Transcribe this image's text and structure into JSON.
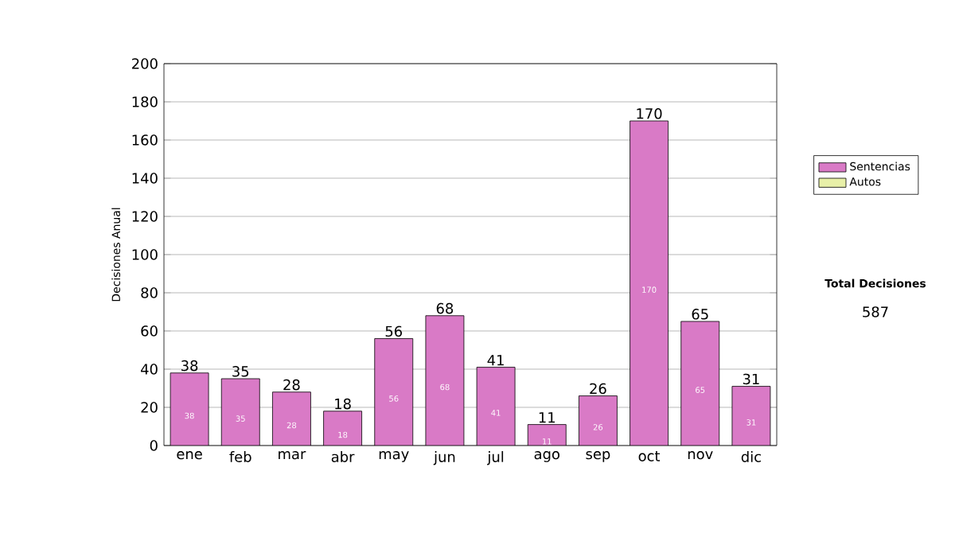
{
  "chart_data": {
    "type": "bar",
    "ylabel": "Decisiones Anual",
    "categories": [
      "ene",
      "feb",
      "mar",
      "abr",
      "may",
      "jun",
      "jul",
      "ago",
      "sep",
      "oct",
      "nov",
      "dic"
    ],
    "series": [
      {
        "name": "Sentencias",
        "color": "#d97ac6",
        "values": [
          38,
          35,
          28,
          18,
          56,
          68,
          41,
          11,
          26,
          170,
          65,
          31
        ]
      },
      {
        "name": "Autos",
        "color": "#e8f0a8",
        "values": [
          null,
          null,
          null,
          null,
          null,
          null,
          null,
          null,
          null,
          null,
          null,
          null
        ]
      }
    ],
    "stacked": true,
    "data_labels": true,
    "totals": [
      "38",
      "35",
      "28",
      "18",
      "56",
      "68",
      "41",
      "11",
      "26",
      "170",
      "65",
      "31"
    ],
    "ylim": [
      0,
      200
    ],
    "yticks": [
      0,
      20,
      40,
      60,
      80,
      100,
      120,
      140,
      160,
      180,
      200
    ],
    "grid": "y",
    "legend": "right",
    "annotations": [
      "Total Decisiones",
      "587"
    ]
  }
}
